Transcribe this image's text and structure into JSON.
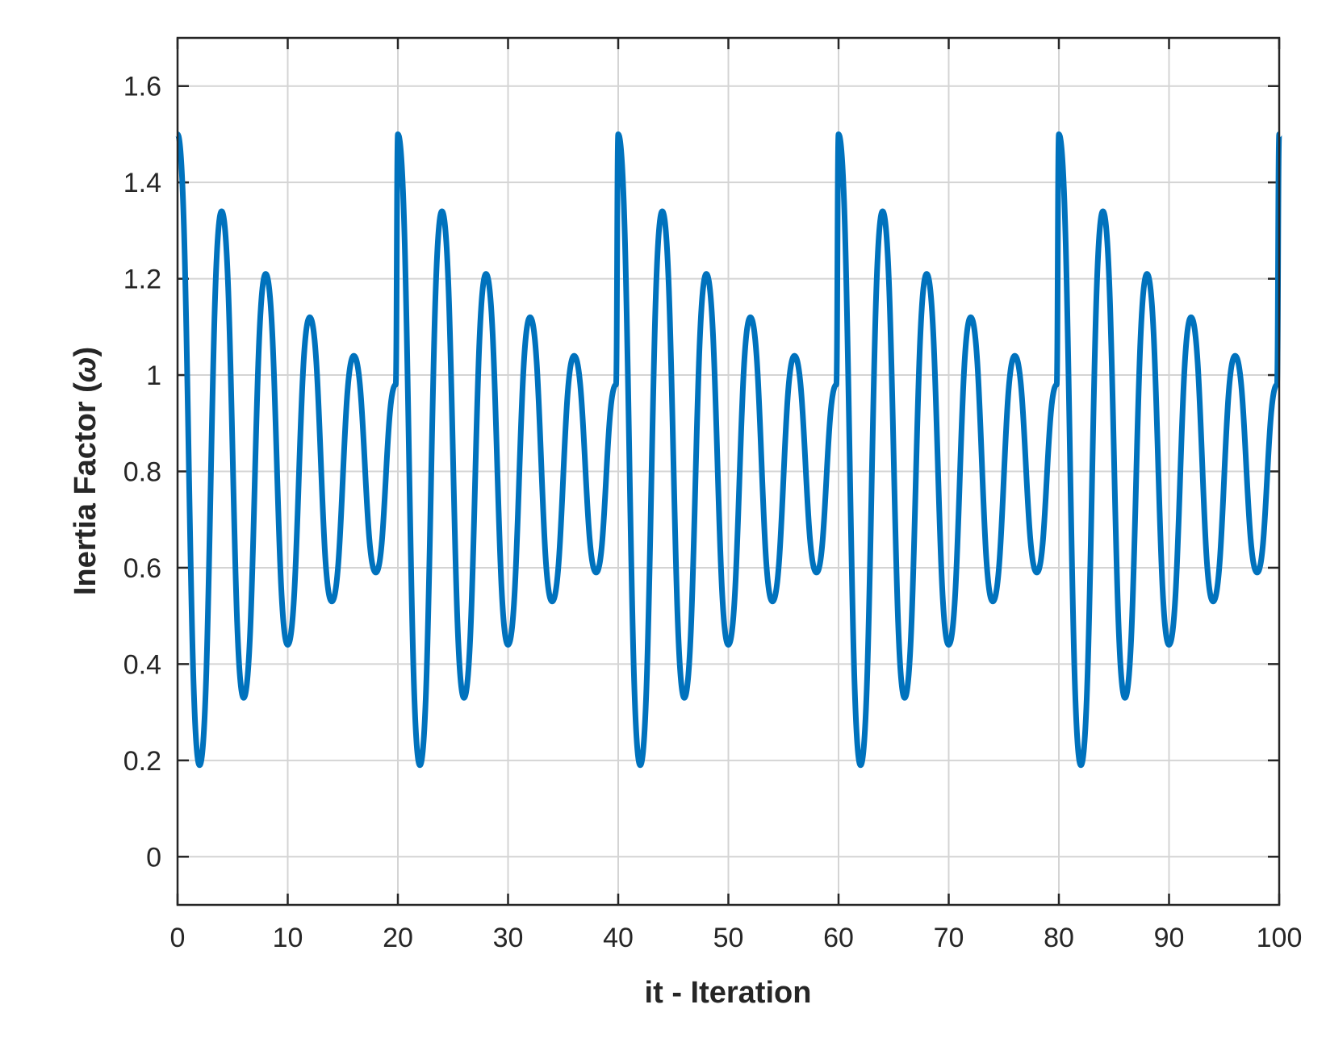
{
  "chart_data": {
    "type": "line",
    "title": "",
    "xlabel": "it - Iteration",
    "ylabel_text": "Inertia Factor (",
    "ylabel_symbol": "ω",
    "ylabel_close": ")",
    "xlim": [
      0,
      100
    ],
    "ylim": [
      -0.1,
      1.7
    ],
    "xticks": [
      0,
      10,
      20,
      30,
      40,
      50,
      60,
      70,
      80,
      90,
      100
    ],
    "xtick_labels": [
      "0",
      "10",
      "20",
      "30",
      "40",
      "50",
      "60",
      "70",
      "80",
      "90",
      "100"
    ],
    "yticks": [
      0,
      0.2,
      0.4,
      0.6,
      0.8,
      1,
      1.2,
      1.4,
      1.6
    ],
    "ytick_labels": [
      "0",
      "0.2",
      "0.4",
      "0.6",
      "0.8",
      "1",
      "1.2",
      "1.4",
      "1.6"
    ],
    "grid": true,
    "line_color": "#0072BD",
    "grid_color": "#d4d4d4",
    "axis_color": "#262626",
    "series": [
      {
        "x": [
          0,
          2,
          4,
          6,
          8,
          10,
          12,
          14,
          16,
          18,
          19.8,
          20,
          22,
          24,
          26,
          28,
          30,
          32,
          34,
          36,
          38,
          39.8,
          40,
          42,
          44,
          46,
          48,
          50,
          52,
          54,
          56,
          58,
          59.8,
          60,
          62,
          64,
          66,
          68,
          70,
          72,
          74,
          76,
          78,
          79.8,
          80,
          82,
          84,
          86,
          88,
          90,
          92,
          94,
          96,
          98,
          99.8,
          100
        ],
        "y": [
          1.5,
          0.19,
          1.34,
          0.33,
          1.21,
          0.44,
          1.12,
          0.53,
          1.04,
          0.59,
          0.98,
          1.5,
          0.19,
          1.34,
          0.33,
          1.21,
          0.44,
          1.12,
          0.53,
          1.04,
          0.59,
          0.98,
          1.5,
          0.19,
          1.34,
          0.33,
          1.21,
          0.44,
          1.12,
          0.53,
          1.04,
          0.59,
          0.98,
          1.5,
          0.19,
          1.34,
          0.33,
          1.21,
          0.44,
          1.12,
          0.53,
          1.04,
          0.59,
          0.98,
          1.5,
          0.19,
          1.34,
          0.33,
          1.21,
          0.44,
          1.12,
          0.53,
          1.04,
          0.59,
          0.98,
          1.5
        ]
      }
    ]
  }
}
